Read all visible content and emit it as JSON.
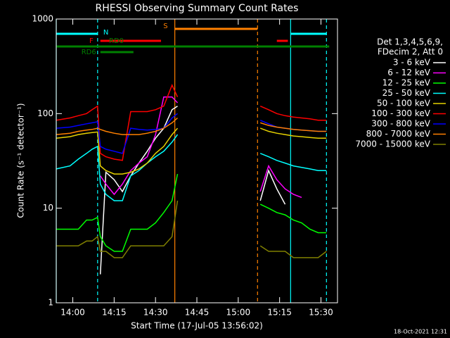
{
  "chart_data": {
    "type": "line",
    "title": "RHESSI Observing Summary Count Rates",
    "xlabel": "Start Time (17-Jul-05 13:56:02)",
    "ylabel": "Count Rate (s⁻¹ detector⁻¹)",
    "footer": "18-Oct-2021 12:31",
    "legend_header": [
      "Det 1,3,4,5,6,9,",
      "FDecim 2, Att 0"
    ],
    "log_y": true,
    "xlim": [
      "13:54",
      "15:36"
    ],
    "xticks": [
      "14:00",
      "14:15",
      "14:30",
      "14:45",
      "15:00",
      "15:15",
      "15:30"
    ],
    "ylim": [
      1,
      1000
    ],
    "yticks": [
      1,
      10,
      100,
      1000
    ],
    "x": [
      "13:54",
      "13:59",
      "14:02",
      "14:05",
      "14:07",
      "14:09",
      "14:10",
      "14:12",
      "14:15",
      "14:18",
      "14:21",
      "14:24",
      "14:27",
      "14:30",
      "14:33",
      "14:36",
      "14:38",
      "14:50",
      "15:08",
      "15:11",
      "15:14",
      "15:17",
      "15:20",
      "15:23",
      "15:26",
      "15:29",
      "15:32"
    ],
    "series": [
      {
        "name": "3 - 6 keV",
        "color": "#ffffff",
        "values": [
          null,
          null,
          null,
          null,
          null,
          null,
          2,
          24,
          20,
          15,
          22,
          30,
          40,
          55,
          70,
          110,
          120,
          null,
          12,
          25,
          16,
          11,
          null,
          null,
          null,
          null,
          null
        ]
      },
      {
        "name": "6 - 12 keV",
        "color": "#ff00ff",
        "values": [
          null,
          null,
          null,
          null,
          null,
          null,
          22,
          18,
          14,
          18,
          25,
          30,
          35,
          60,
          150,
          150,
          130,
          null,
          15,
          28,
          20,
          16,
          14,
          13,
          null,
          null,
          null
        ]
      },
      {
        "name": "12 - 25 keV",
        "color": "#00ff00",
        "values": [
          6,
          6,
          6,
          7.5,
          7.5,
          8,
          5,
          4,
          3.5,
          3.5,
          6,
          6,
          6,
          7,
          9,
          12,
          23,
          null,
          11,
          10,
          9,
          8.5,
          7.5,
          7,
          6,
          5.5,
          5.5
        ]
      },
      {
        "name": "25 - 50 keV",
        "color": "#00ffff",
        "values": [
          26,
          28,
          33,
          38,
          42,
          45,
          18,
          14,
          12,
          12,
          22,
          25,
          30,
          35,
          40,
          50,
          60,
          null,
          38,
          35,
          32,
          30,
          28,
          27,
          26,
          25,
          25
        ]
      },
      {
        "name": "50 - 100 keV",
        "color": "#e6d200",
        "values": [
          55,
          57,
          60,
          62,
          63,
          64,
          28,
          25,
          23,
          23,
          24,
          26,
          30,
          38,
          45,
          60,
          70,
          null,
          70,
          65,
          62,
          60,
          58,
          57,
          56,
          55,
          55
        ]
      },
      {
        "name": "100 - 300 keV",
        "color": "#ff0000",
        "values": [
          85,
          90,
          95,
          100,
          110,
          120,
          38,
          35,
          33,
          32,
          105,
          105,
          105,
          110,
          120,
          200,
          150,
          null,
          120,
          110,
          100,
          95,
          92,
          90,
          88,
          85,
          85
        ]
      },
      {
        "name": "300 - 800 keV",
        "color": "#0000ff",
        "values": [
          70,
          72,
          75,
          78,
          80,
          82,
          45,
          42,
          40,
          38,
          70,
          68,
          67,
          68,
          70,
          90,
          100,
          null,
          85,
          78,
          72,
          70,
          68,
          67,
          66,
          65,
          65
        ]
      },
      {
        "name": "800 - 7000 keV",
        "color": "#ff8000",
        "values": [
          60,
          62,
          65,
          67,
          68,
          70,
          68,
          65,
          62,
          60,
          60,
          60,
          62,
          65,
          70,
          80,
          90,
          null,
          80,
          75,
          72,
          70,
          68,
          67,
          66,
          65,
          65
        ]
      },
      {
        "name": "7000 - 15000 keV",
        "color": "#808000",
        "values": [
          4,
          4,
          4,
          4.5,
          4.5,
          5,
          3.5,
          3.5,
          3,
          3,
          4,
          4,
          4,
          4,
          4,
          5,
          12,
          null,
          4,
          3.5,
          3.5,
          3.5,
          3,
          3,
          3,
          3,
          3.5
        ]
      }
    ],
    "flags": [
      {
        "label": "S",
        "color": "#ff8000",
        "segments": [
          [
            "14:37",
            "15:07"
          ]
        ]
      },
      {
        "label": "N",
        "color": "#00ffff",
        "segments": [
          [
            "13:54",
            "14:09"
          ],
          [
            "15:19",
            "15:32"
          ]
        ]
      },
      {
        "label": "F",
        "color": "#ff0000",
        "segments": [
          [
            "14:10",
            "14:32"
          ],
          [
            "15:14",
            "15:18"
          ]
        ]
      },
      {
        "label": "RD0",
        "color": "#008000",
        "segments": [
          [
            "13:54",
            "15:33"
          ]
        ]
      },
      {
        "label": "RD6",
        "color": "#008000",
        "segments": [
          [
            "14:10",
            "14:22"
          ]
        ]
      }
    ],
    "events": [
      {
        "time": "13:54",
        "color": "#00ffff",
        "dashed": false
      },
      {
        "time": "14:09",
        "color": "#00ffff",
        "dashed": true
      },
      {
        "time": "14:37",
        "color": "#ff8000",
        "dashed": false
      },
      {
        "time": "15:07",
        "color": "#ff8000",
        "dashed": true
      },
      {
        "time": "15:19",
        "color": "#00ffff",
        "dashed": false
      },
      {
        "time": "15:32",
        "color": "#00ffff",
        "dashed": true
      }
    ]
  }
}
